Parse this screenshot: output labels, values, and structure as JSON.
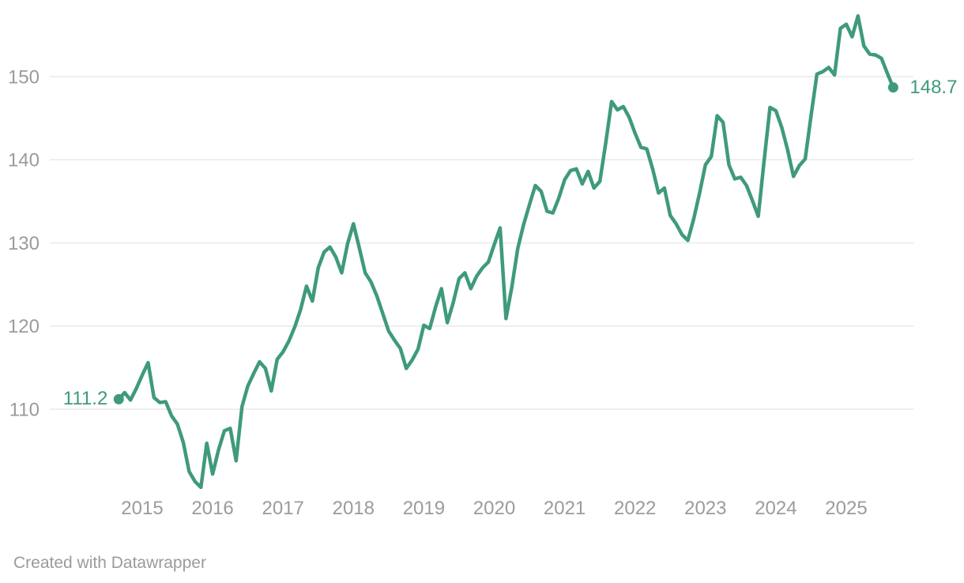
{
  "chart_data": {
    "type": "line",
    "frequency": "monthly",
    "start_month": "2014-09",
    "end_month": "2025-09",
    "start_point_label": "111.2",
    "end_point_label": "148.7",
    "line_color": "#3f9a7c",
    "text_color": "#9b9b9b",
    "grid_color": "#e9e9e9",
    "grid": "horizontal-only",
    "legend": "none",
    "y_ticks": [
      110,
      120,
      130,
      140,
      150
    ],
    "y_axis_implied_range": [
      99.5,
      158.5
    ],
    "x_ticks": [
      "2015",
      "2016",
      "2017",
      "2018",
      "2019",
      "2020",
      "2021",
      "2022",
      "2023",
      "2024",
      "2025"
    ],
    "series": [
      {
        "year": 2014,
        "first_month": 9,
        "values": [
          111.2,
          112.0,
          111.1,
          112.5
        ]
      },
      {
        "year": 2015,
        "values": [
          114.1,
          115.6,
          111.4,
          110.8,
          110.9,
          109.2,
          108.2,
          106.0,
          102.5,
          101.3,
          100.6,
          105.9
        ]
      },
      {
        "year": 2016,
        "values": [
          102.2,
          105.1,
          107.4,
          107.7,
          103.8,
          110.3,
          112.8,
          114.3,
          115.7,
          114.9,
          112.2,
          116.0
        ]
      },
      {
        "year": 2017,
        "values": [
          116.9,
          118.2,
          119.9,
          122.0,
          124.8,
          123.0,
          127.0,
          128.9,
          129.5,
          128.3,
          126.4,
          129.9
        ]
      },
      {
        "year": 2018,
        "values": [
          132.3,
          129.4,
          126.4,
          125.3,
          123.6,
          121.5,
          119.4,
          118.3,
          117.3,
          114.9,
          115.9,
          117.2
        ]
      },
      {
        "year": 2019,
        "values": [
          120.1,
          119.7,
          122.3,
          124.5,
          120.4,
          122.8,
          125.7,
          126.4,
          124.5,
          126.0,
          127.0,
          127.7
        ]
      },
      {
        "year": 2020,
        "values": [
          129.8,
          131.8,
          120.9,
          124.7,
          129.3,
          132.2,
          134.6,
          136.9,
          136.2,
          133.8,
          133.6,
          135.4
        ]
      },
      {
        "year": 2021,
        "values": [
          137.6,
          138.7,
          138.9,
          137.1,
          138.6,
          136.6,
          137.4,
          142.0,
          147.0,
          146.0,
          146.4,
          145.1
        ]
      },
      {
        "year": 2022,
        "values": [
          143.2,
          141.5,
          141.3,
          138.9,
          136.0,
          136.6,
          133.3,
          132.3,
          131.0,
          130.3,
          132.9,
          136.0
        ]
      },
      {
        "year": 2023,
        "values": [
          139.4,
          140.4,
          145.3,
          144.5,
          139.4,
          137.7,
          137.9,
          136.9,
          135.1,
          133.2,
          139.9,
          146.3
        ]
      },
      {
        "year": 2024,
        "values": [
          145.9,
          143.9,
          141.2,
          138.0,
          139.3,
          140.1,
          145.3,
          150.3,
          150.6,
          151.1,
          150.2,
          155.8
        ]
      },
      {
        "year": 2025,
        "values": [
          156.3,
          154.8,
          157.3,
          153.7,
          152.7,
          152.6,
          152.2,
          150.4,
          148.7
        ]
      }
    ]
  },
  "footer": {
    "credit": "Created with Datawrapper"
  }
}
